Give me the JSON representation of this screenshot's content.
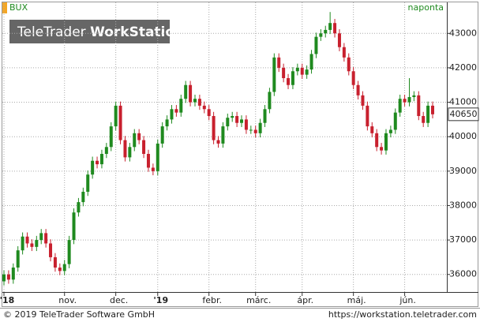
{
  "chart_data": {
    "type": "candlestick",
    "title": "BUX",
    "subtitle": "naponta",
    "watermark": [
      "TeleTrader",
      "WorkStation"
    ],
    "footer_left": "© 2019 TeleTrader Software GmbH",
    "footer_right": "https://workstation.teletrader.com",
    "categories": [
      "'18",
      null,
      null,
      null,
      null,
      null,
      null,
      null,
      null,
      null,
      null,
      null,
      null,
      "nov.",
      null,
      null,
      null,
      null,
      null,
      null,
      null,
      null,
      null,
      null,
      "dec.",
      null,
      null,
      null,
      null,
      null,
      null,
      null,
      null,
      "'19",
      null,
      null,
      null,
      null,
      null,
      null,
      null,
      null,
      null,
      null,
      "febr.",
      null,
      null,
      null,
      null,
      null,
      null,
      null,
      null,
      null,
      "márc.",
      null,
      null,
      null,
      null,
      null,
      null,
      null,
      null,
      null,
      "ápr.",
      null,
      null,
      null,
      null,
      null,
      null,
      null,
      null,
      null,
      null,
      "máj.",
      null,
      null,
      null,
      null,
      null,
      null,
      null,
      null,
      null,
      null,
      "jún.",
      null,
      null,
      null,
      null,
      null,
      null
    ],
    "open": [
      35800,
      36000,
      35850,
      36200,
      36700,
      37100,
      36900,
      36800,
      37000,
      37200,
      36900,
      36500,
      36200,
      36100,
      36300,
      37000,
      37800,
      38100,
      38400,
      38900,
      39300,
      39200,
      39500,
      39700,
      40300,
      40900,
      39900,
      39400,
      39700,
      40100,
      39900,
      39500,
      39100,
      39000,
      39800,
      40300,
      40500,
      40800,
      40700,
      41100,
      41500,
      41000,
      41100,
      40900,
      40800,
      40600,
      39900,
      39800,
      40300,
      40550,
      40600,
      40400,
      40500,
      40200,
      40200,
      40100,
      40400,
      40800,
      41300,
      42300,
      42000,
      41700,
      41500,
      41900,
      42000,
      41800,
      41950,
      42400,
      42900,
      43000,
      43100,
      43300,
      43000,
      42600,
      42300,
      41900,
      41500,
      41200,
      40900,
      40300,
      40100,
      39700,
      39600,
      40100,
      40200,
      40700,
      41100,
      41000,
      41150,
      41200,
      40600,
      40400,
      40900
    ],
    "high": [
      36120,
      36120,
      36320,
      36820,
      37220,
      37220,
      37020,
      37120,
      37320,
      37320,
      37020,
      36620,
      36320,
      36420,
      37120,
      37920,
      38220,
      38520,
      39020,
      39420,
      39420,
      39620,
      39820,
      40420,
      41020,
      41020,
      40020,
      39820,
      40220,
      40220,
      40020,
      39620,
      39220,
      39920,
      40420,
      40620,
      40920,
      40920,
      41220,
      41620,
      41620,
      41220,
      41220,
      41020,
      40920,
      40720,
      40020,
      40420,
      40670,
      40720,
      40720,
      40620,
      40620,
      40320,
      40320,
      40520,
      40920,
      41420,
      42420,
      42420,
      42120,
      41820,
      42020,
      42120,
      42120,
      42070,
      42520,
      43020,
      43120,
      43220,
      43620,
      43420,
      43120,
      42720,
      42420,
      42020,
      41620,
      41320,
      41020,
      40420,
      40220,
      39820,
      40220,
      40320,
      40820,
      41220,
      41220,
      41700,
      41320,
      41320,
      40720,
      41020,
      41020
    ],
    "low": [
      35680,
      35730,
      35730,
      36080,
      36580,
      36780,
      36680,
      36680,
      36880,
      36780,
      36380,
      36080,
      35980,
      35980,
      36180,
      36880,
      37680,
      37980,
      38280,
      38780,
      39080,
      39080,
      39380,
      39580,
      40180,
      39780,
      39280,
      39280,
      39580,
      39780,
      39380,
      38980,
      38880,
      38880,
      39680,
      40180,
      40380,
      40580,
      40580,
      40980,
      40880,
      40880,
      40780,
      40680,
      40480,
      39780,
      39680,
      39680,
      40180,
      40430,
      40280,
      40280,
      40080,
      40080,
      39980,
      39980,
      40280,
      40680,
      41180,
      41880,
      41580,
      41380,
      41380,
      41780,
      41680,
      41680,
      41830,
      42280,
      42780,
      42880,
      42980,
      42880,
      42480,
      42180,
      41780,
      41380,
      41080,
      40780,
      40180,
      39980,
      39580,
      39480,
      39480,
      39980,
      40080,
      40580,
      40880,
      40880,
      41030,
      40480,
      40280,
      40280,
      40530
    ],
    "close": [
      36000,
      35850,
      36200,
      36700,
      37100,
      36900,
      36800,
      37000,
      37200,
      36900,
      36500,
      36200,
      36100,
      36300,
      37000,
      37800,
      38100,
      38400,
      38900,
      39300,
      39200,
      39500,
      39700,
      40300,
      40900,
      39900,
      39400,
      39700,
      40100,
      39900,
      39500,
      39100,
      39000,
      39800,
      40300,
      40500,
      40800,
      40700,
      41100,
      41500,
      41000,
      41100,
      40900,
      40800,
      40600,
      39900,
      39800,
      40300,
      40550,
      40600,
      40400,
      40500,
      40200,
      40200,
      40100,
      40400,
      40800,
      41300,
      42300,
      42000,
      41700,
      41500,
      41900,
      42000,
      41800,
      41950,
      42400,
      42900,
      43000,
      43100,
      43300,
      43000,
      42600,
      42300,
      41900,
      41500,
      41200,
      40900,
      40300,
      40100,
      39700,
      39600,
      40100,
      40200,
      40700,
      41100,
      41000,
      41150,
      41200,
      40600,
      40400,
      40900,
      40650
    ],
    "up_color": "#1f8a1f",
    "down_color": "#c8202e",
    "ylim": [
      35490,
      43900
    ],
    "yticks": [
      36000,
      37000,
      38000,
      39000,
      40000,
      41000,
      42000,
      43000
    ],
    "grid": true
  }
}
